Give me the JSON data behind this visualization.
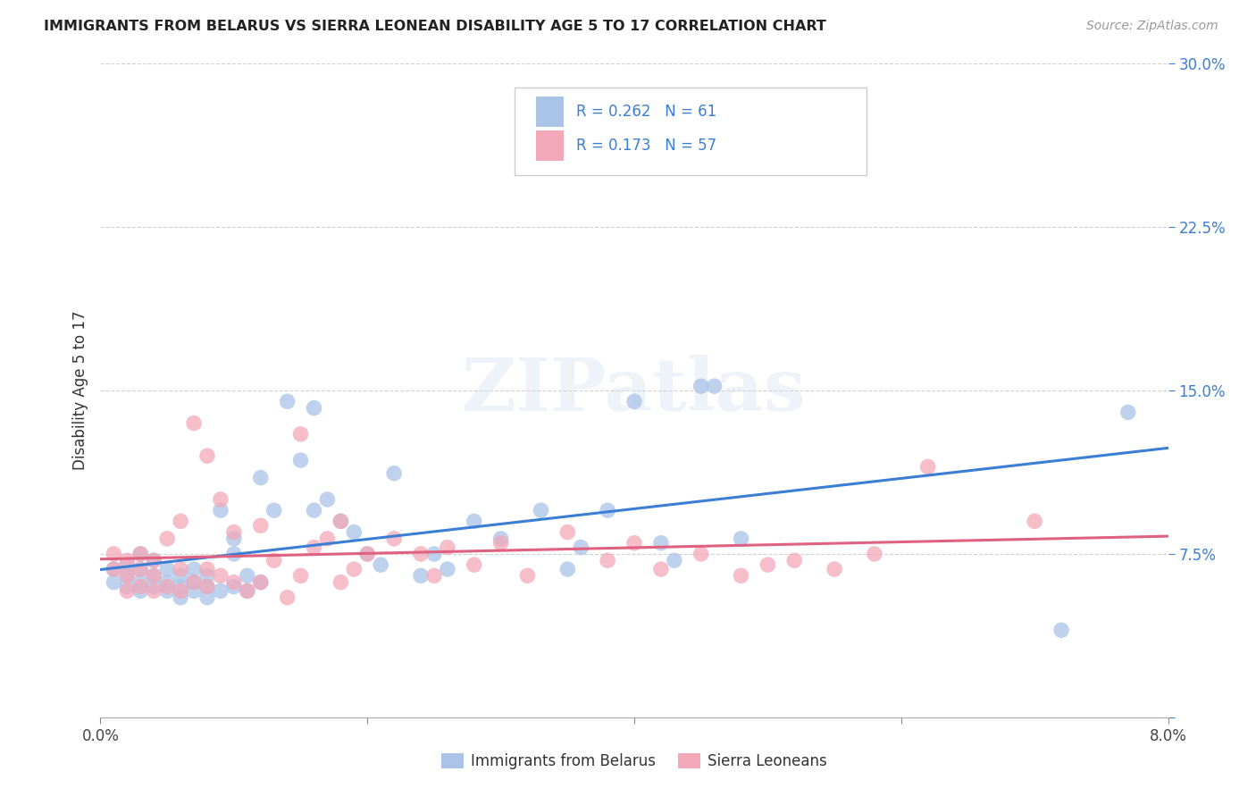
{
  "title": "IMMIGRANTS FROM BELARUS VS SIERRA LEONEAN DISABILITY AGE 5 TO 17 CORRELATION CHART",
  "source": "Source: ZipAtlas.com",
  "ylabel": "Disability Age 5 to 17",
  "xlim": [
    0.0,
    0.08
  ],
  "ylim": [
    0.0,
    0.3
  ],
  "color_blue": "#aac4e8",
  "color_pink": "#f2a8b8",
  "trend_blue": "#3a7fd5",
  "trend_pink": "#e06080",
  "tick_color_right": "#3a7fd5",
  "watermark": "ZIPatlas",
  "legend_label_blue": "Immigrants from Belarus",
  "legend_label_pink": "Sierra Leoneans",
  "blue_R": 0.262,
  "blue_N": 61,
  "pink_R": 0.173,
  "pink_N": 57,
  "blue_scatter_x": [
    0.001,
    0.001,
    0.002,
    0.002,
    0.002,
    0.003,
    0.003,
    0.003,
    0.003,
    0.004,
    0.004,
    0.004,
    0.005,
    0.005,
    0.005,
    0.006,
    0.006,
    0.006,
    0.007,
    0.007,
    0.007,
    0.008,
    0.008,
    0.008,
    0.009,
    0.009,
    0.01,
    0.01,
    0.01,
    0.011,
    0.011,
    0.012,
    0.012,
    0.013,
    0.014,
    0.015,
    0.016,
    0.016,
    0.017,
    0.018,
    0.019,
    0.02,
    0.021,
    0.022,
    0.024,
    0.025,
    0.026,
    0.028,
    0.03,
    0.033,
    0.035,
    0.036,
    0.038,
    0.04,
    0.042,
    0.043,
    0.045,
    0.046,
    0.048,
    0.072,
    0.077
  ],
  "blue_scatter_y": [
    0.062,
    0.068,
    0.06,
    0.065,
    0.07,
    0.058,
    0.062,
    0.068,
    0.075,
    0.06,
    0.065,
    0.072,
    0.058,
    0.062,
    0.068,
    0.055,
    0.06,
    0.065,
    0.058,
    0.062,
    0.068,
    0.055,
    0.06,
    0.065,
    0.058,
    0.095,
    0.06,
    0.075,
    0.082,
    0.058,
    0.065,
    0.062,
    0.11,
    0.095,
    0.145,
    0.118,
    0.095,
    0.142,
    0.1,
    0.09,
    0.085,
    0.075,
    0.07,
    0.112,
    0.065,
    0.075,
    0.068,
    0.09,
    0.082,
    0.095,
    0.068,
    0.078,
    0.095,
    0.145,
    0.08,
    0.072,
    0.152,
    0.152,
    0.082,
    0.04,
    0.14
  ],
  "pink_scatter_x": [
    0.001,
    0.001,
    0.002,
    0.002,
    0.002,
    0.003,
    0.003,
    0.003,
    0.004,
    0.004,
    0.004,
    0.005,
    0.005,
    0.006,
    0.006,
    0.006,
    0.007,
    0.007,
    0.008,
    0.008,
    0.008,
    0.009,
    0.009,
    0.01,
    0.01,
    0.011,
    0.012,
    0.012,
    0.013,
    0.014,
    0.015,
    0.015,
    0.016,
    0.017,
    0.018,
    0.018,
    0.019,
    0.02,
    0.022,
    0.024,
    0.025,
    0.026,
    0.028,
    0.03,
    0.032,
    0.035,
    0.038,
    0.04,
    0.042,
    0.045,
    0.048,
    0.05,
    0.052,
    0.055,
    0.058,
    0.062,
    0.07
  ],
  "pink_scatter_y": [
    0.068,
    0.075,
    0.058,
    0.065,
    0.072,
    0.06,
    0.068,
    0.075,
    0.058,
    0.065,
    0.072,
    0.06,
    0.082,
    0.058,
    0.068,
    0.09,
    0.062,
    0.135,
    0.06,
    0.068,
    0.12,
    0.065,
    0.1,
    0.062,
    0.085,
    0.058,
    0.062,
    0.088,
    0.072,
    0.055,
    0.065,
    0.13,
    0.078,
    0.082,
    0.062,
    0.09,
    0.068,
    0.075,
    0.082,
    0.075,
    0.065,
    0.078,
    0.07,
    0.08,
    0.065,
    0.085,
    0.072,
    0.08,
    0.068,
    0.075,
    0.065,
    0.07,
    0.072,
    0.068,
    0.075,
    0.115,
    0.09
  ]
}
